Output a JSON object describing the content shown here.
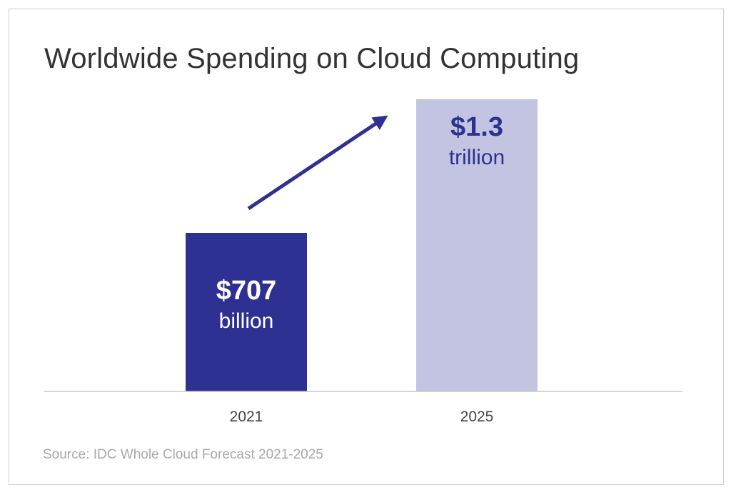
{
  "chart_data": {
    "type": "bar",
    "title": "Worldwide Spending on Cloud Computing",
    "categories": [
      "2021",
      "2025"
    ],
    "values": [
      707,
      1300
    ],
    "value_units": "billion USD",
    "data_labels": [
      {
        "value": "$707",
        "unit": "billion"
      },
      {
        "value": "$1.3",
        "unit": "trillion"
      }
    ],
    "bar_colors": [
      "#2e3192",
      "#c3c4e2"
    ],
    "label_colors": [
      "#ffffff",
      "#2e3192"
    ],
    "arrow_color": "#2e3192",
    "axis_color": "#c8c8c8",
    "xlabel": "",
    "ylabel": "",
    "ylim": [
      0,
      1300
    ],
    "grid": false
  },
  "source": "Source: IDC Whole Cloud Forecast 2021-2025"
}
